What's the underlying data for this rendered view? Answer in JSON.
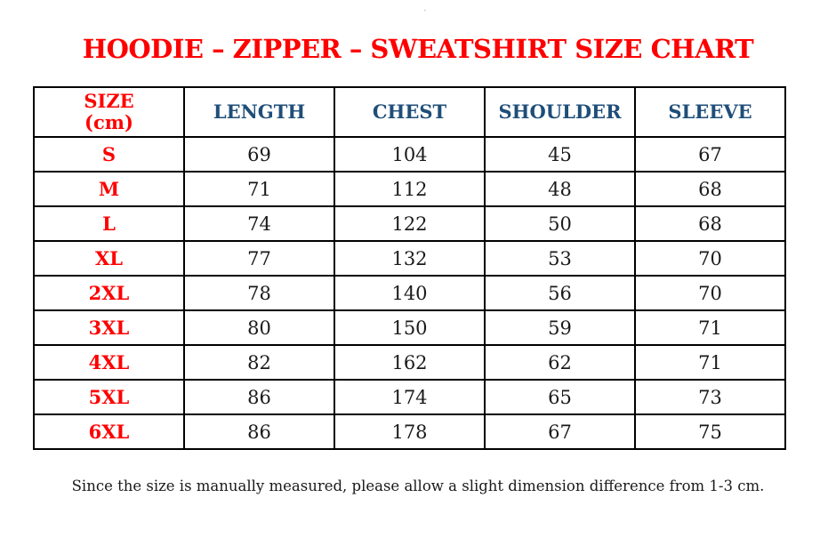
{
  "page": {
    "artifact_dot": ".",
    "title": "HOODIE – ZIPPER – SWEATSHIRT SIZE CHART",
    "note": "Since the size is manually measured, please allow a slight dimension difference from 1-3 cm."
  },
  "colors": {
    "title_red": "#ff0000",
    "size_label_red": "#ff0000",
    "header_blue": "#1f4e79",
    "body_text": "#1a1a1a",
    "border": "#000000",
    "background": "#ffffff"
  },
  "chart_data": {
    "type": "table",
    "title": "HOODIE – ZIPPER – SWEATSHIRT SIZE CHART",
    "unit": "cm",
    "columns": [
      "SIZE\n(cm)",
      "LENGTH",
      "CHEST",
      "SHOULDER",
      "SLEEVE"
    ],
    "rows": [
      [
        "S",
        69,
        104,
        45,
        67
      ],
      [
        "M",
        71,
        112,
        48,
        68
      ],
      [
        "L",
        74,
        122,
        50,
        68
      ],
      [
        "XL",
        77,
        132,
        53,
        70
      ],
      [
        "2XL",
        78,
        140,
        56,
        70
      ],
      [
        "3XL",
        80,
        150,
        59,
        71
      ],
      [
        "4XL",
        82,
        162,
        62,
        71
      ],
      [
        "5XL",
        86,
        174,
        65,
        73
      ],
      [
        "6XL",
        86,
        178,
        67,
        75
      ]
    ],
    "note": "Since the size is manually measured, please allow a slight dimension difference from 1-3 cm."
  }
}
